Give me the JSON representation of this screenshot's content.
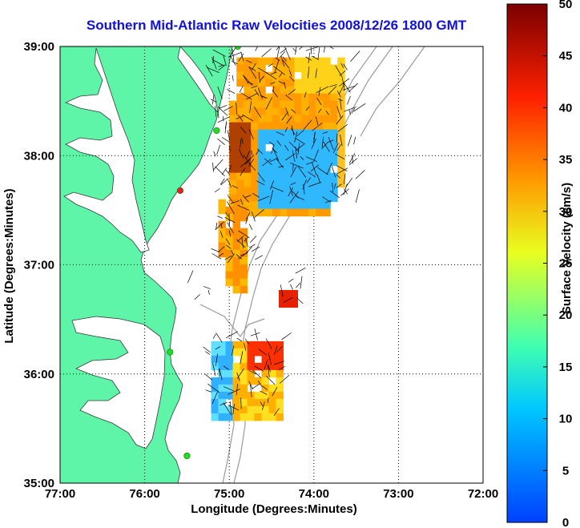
{
  "title": "Southern Mid-Atlantic Raw Velocities 2008/12/26 1800 GMT",
  "axes": {
    "xlabel": "Longitude (Degrees:Minutes)",
    "ylabel": "Latitude (Degrees:Minutes)",
    "x_ticks": [
      "77:00",
      "76:00",
      "75:00",
      "74:00",
      "73:00",
      "72:00"
    ],
    "y_ticks": [
      "39:00",
      "38:00",
      "37:00",
      "36:00",
      "35:00"
    ],
    "x_range": [
      -77,
      -72
    ],
    "y_range": [
      35,
      39
    ],
    "grid": "dotted"
  },
  "colorbar": {
    "label": "Surface Velocity (cm/s)",
    "ticks": [
      "0",
      "5",
      "10",
      "15",
      "20",
      "25",
      "30",
      "35",
      "40",
      "45",
      "50"
    ],
    "range": [
      0,
      50
    ],
    "colors": [
      "#0040ff",
      "#00c8ff",
      "#40ffb0",
      "#e8ff20",
      "#ff9a00",
      "#ff2000",
      "#7a0000"
    ]
  },
  "colors": {
    "land": "#5ef5a8",
    "water": "#ffffff",
    "shelf_contour": "#9a9a9a",
    "title": "#1010e0",
    "station_marker": "#20dd20",
    "station_marker_alt": "#e82020"
  },
  "stations": [
    {
      "lon": -74.9,
      "lat": 39.0,
      "status": "active"
    },
    {
      "lon": -75.15,
      "lat": 38.23,
      "status": "active"
    },
    {
      "lon": -75.58,
      "lat": 37.68,
      "status": "inactive"
    },
    {
      "lon": -75.7,
      "lat": 36.2,
      "status": "active"
    },
    {
      "lon": -75.5,
      "lat": 35.25,
      "status": "active"
    }
  ],
  "velocity_regions": [
    {
      "name": "northern-field",
      "description": "dense vectors over shelf",
      "colors": [
        "#ff9a00",
        "#ffd21a",
        "#40e0ff",
        "#b04000"
      ]
    },
    {
      "name": "southern-field",
      "description": "sparse vectors near Cape Hatteras",
      "colors": [
        "#30b0ff",
        "#ff3000",
        "#ffe020"
      ]
    }
  ]
}
